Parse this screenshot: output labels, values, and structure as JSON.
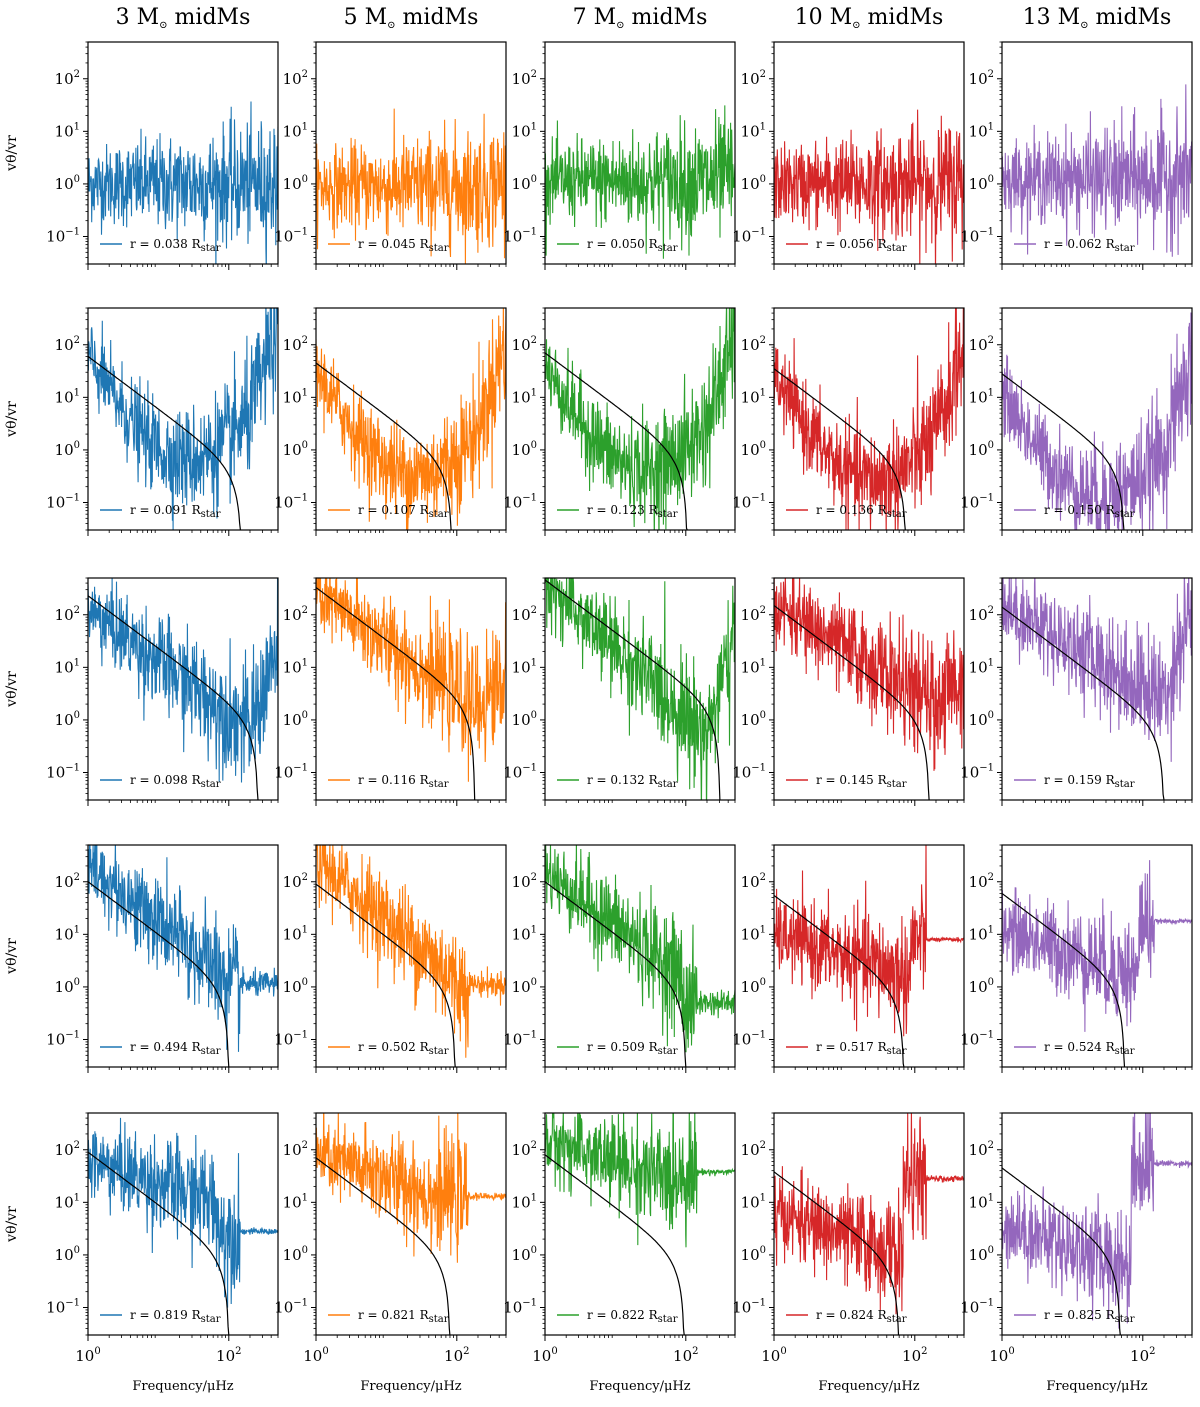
{
  "colors": {
    "3": "#1f77b4",
    "5": "#ff7f0e",
    "7": "#2ca02c",
    "10": "#d62728",
    "13": "#9467bd",
    "fit": "#000000"
  },
  "chart_data": {
    "type": "line",
    "layout": "grid 5 rows x 5 columns",
    "xscale": "log",
    "yscale": "log",
    "xlabel": "Frequency/μHz",
    "ylabel": "vθ/vr",
    "xlim": [
      1,
      500
    ],
    "ylim": [
      0.03,
      500
    ],
    "x_ticks": [
      {
        "base": "10",
        "exp": "0",
        "value": 1
      },
      {
        "base": "10",
        "exp": "2",
        "value": 100
      }
    ],
    "y_ticks": [
      {
        "base": "10",
        "exp": "2",
        "value": 100
      },
      {
        "base": "10",
        "exp": "1",
        "value": 10
      },
      {
        "base": "10",
        "exp": "0",
        "value": 1
      },
      {
        "base": "10",
        "exp": "−1",
        "value": 0.1
      }
    ],
    "columns": [
      {
        "title_num": "3 M",
        "title_rest": " midMs",
        "color_key": "3"
      },
      {
        "title_num": "5 M",
        "title_rest": " midMs",
        "color_key": "5"
      },
      {
        "title_num": "7 M",
        "title_rest": " midMs",
        "color_key": "7"
      },
      {
        "title_num": "10 M",
        "title_rest": " midMs",
        "color_key": "10"
      },
      {
        "title_num": "13 M",
        "title_rest": " midMs",
        "color_key": "13"
      }
    ],
    "rows": [
      {
        "radii": [
          "0.038",
          "0.045",
          "0.050",
          "0.056",
          "0.062"
        ],
        "fit": null,
        "behaviour": [
          "flat ~1, noisy, converging to ~1.3 at high frequency",
          "flat ~1, noisy",
          "flat ~1, noisy",
          "flat ~1, noisy",
          "flat ~1, noisy"
        ]
      },
      {
        "radii": [
          "0.091",
          "0.107",
          "0.123",
          "0.136",
          "0.150"
        ],
        "fit": [
          {
            "a": 60,
            "fc": 150
          },
          {
            "a": 45,
            "fc": 85
          },
          {
            "a": 70,
            "fc": 105
          },
          {
            "a": 35,
            "fc": 75
          },
          {
            "a": 28,
            "fc": 55
          }
        ]
      },
      {
        "radii": [
          "0.098",
          "0.116",
          "0.132",
          "0.145",
          "0.159"
        ],
        "fit": [
          {
            "a": 230,
            "fc": 260
          },
          {
            "a": 330,
            "fc": 180
          },
          {
            "a": 460,
            "fc": 305
          },
          {
            "a": 150,
            "fc": 160
          },
          {
            "a": 140,
            "fc": 200
          }
        ]
      },
      {
        "radii": [
          "0.494",
          "0.502",
          "0.509",
          "0.517",
          "0.524"
        ],
        "fit": [
          {
            "a": 100,
            "fc": 100
          },
          {
            "a": 90,
            "fc": 95
          },
          {
            "a": 100,
            "fc": 100
          },
          {
            "a": 55,
            "fc": 70
          },
          {
            "a": 60,
            "fc": 55
          }
        ]
      },
      {
        "radii": [
          "0.819",
          "0.821",
          "0.822",
          "0.824",
          "0.825"
        ],
        "fit": [
          {
            "a": 90,
            "fc": 100
          },
          {
            "a": 70,
            "fc": 80
          },
          {
            "a": 80,
            "fc": 95
          },
          {
            "a": 38,
            "fc": 60
          },
          {
            "a": 45,
            "fc": 48
          }
        ],
        "plateau": [
          2.8,
          13,
          38,
          28,
          55
        ]
      }
    ],
    "legend_prefix": "r = ",
    "legend_unit": "R",
    "legend_unit_sub": "star"
  }
}
